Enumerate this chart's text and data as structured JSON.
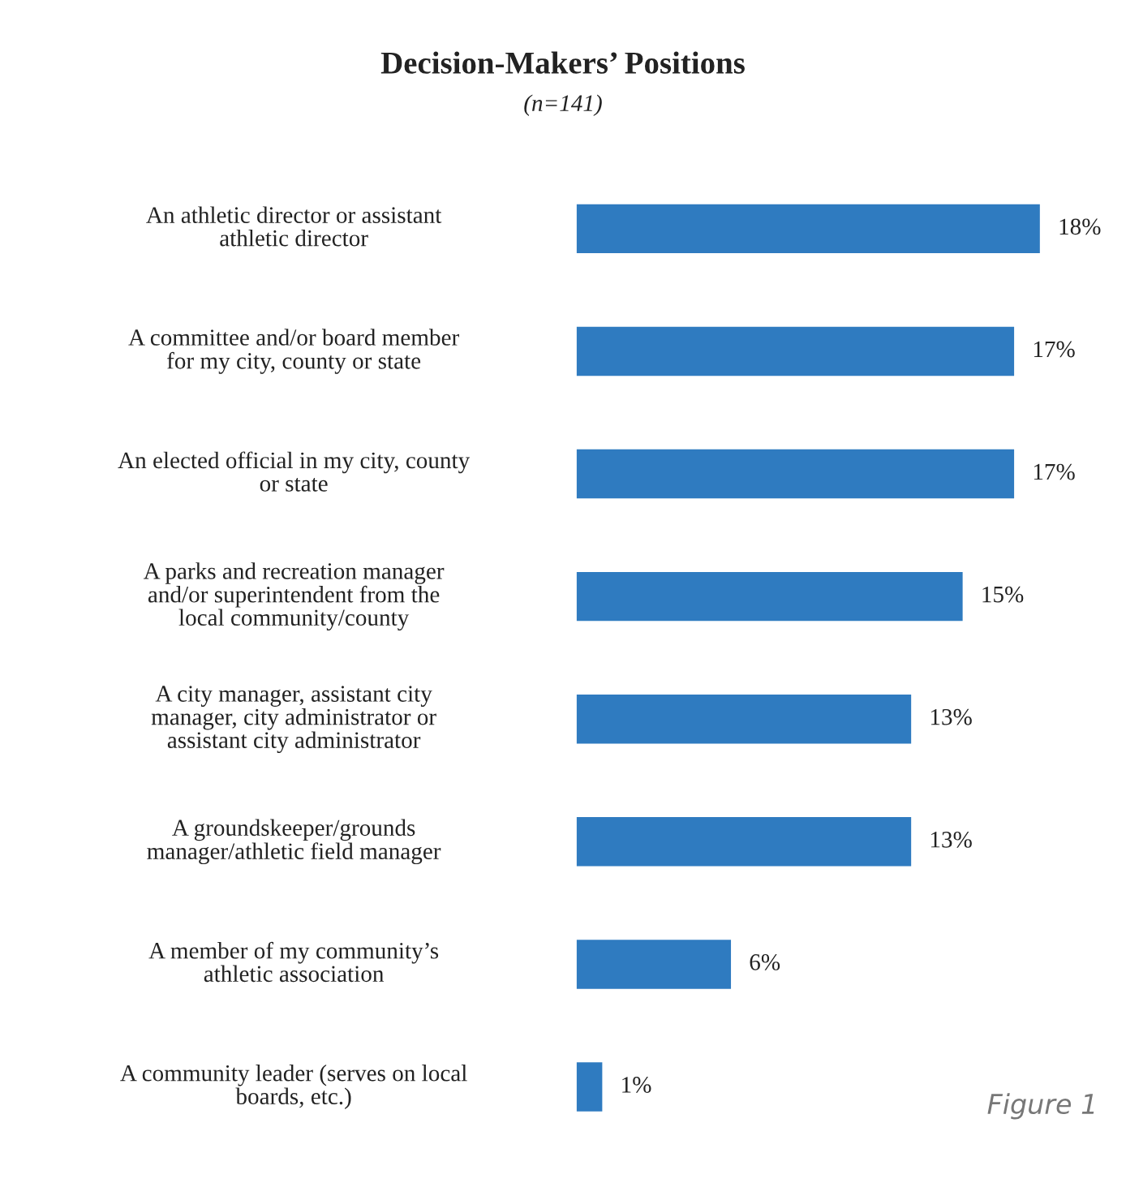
{
  "chart_data": {
    "type": "bar",
    "orientation": "horizontal",
    "title": "Decision-Makers’ Positions",
    "subtitle": "(n=141)",
    "categories": [
      "An athletic director or assistant\nathletic director",
      "A committee and/or board member\nfor my city, county or state",
      "An elected official in my city, county\nor state",
      "A parks and recreation manager\nand/or superintendent from the\nlocal community/county",
      "A city manager, assistant city\nmanager, city administrator or\nassistant city administrator",
      "A groundskeeper/grounds\nmanager/athletic field manager",
      "A member of my community’s\nathletic association",
      "A community leader (serves on local\nboards, etc.)"
    ],
    "values": [
      18,
      17,
      17,
      15,
      13,
      13,
      6,
      1
    ],
    "value_labels": [
      "18%",
      "17%",
      "17%",
      "15%",
      "13%",
      "13%",
      "6%",
      "1%"
    ],
    "color": "#2f7bc0",
    "annotations": [
      "Figure 1"
    ]
  }
}
